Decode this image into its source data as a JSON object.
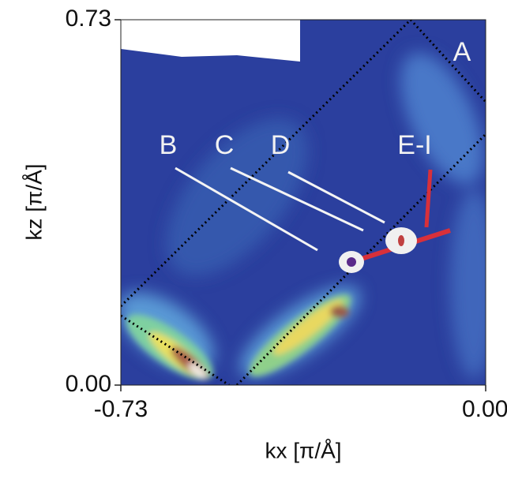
{
  "chart_data": {
    "type": "heatmap",
    "x_label": "kx [π/Å]",
    "y_label": "kz [π/Å]",
    "xlim": [
      -0.73,
      0
    ],
    "ylim": [
      0,
      0.73
    ],
    "xticks": [
      -0.73,
      {
        "value": 0,
        "label": "0.00"
      }
    ],
    "yticks": [
      {
        "value": 0,
        "label": "0.00"
      },
      0.73
    ],
    "annotations": [
      "A",
      "B",
      "C",
      "D",
      "E-I"
    ]
  }
}
